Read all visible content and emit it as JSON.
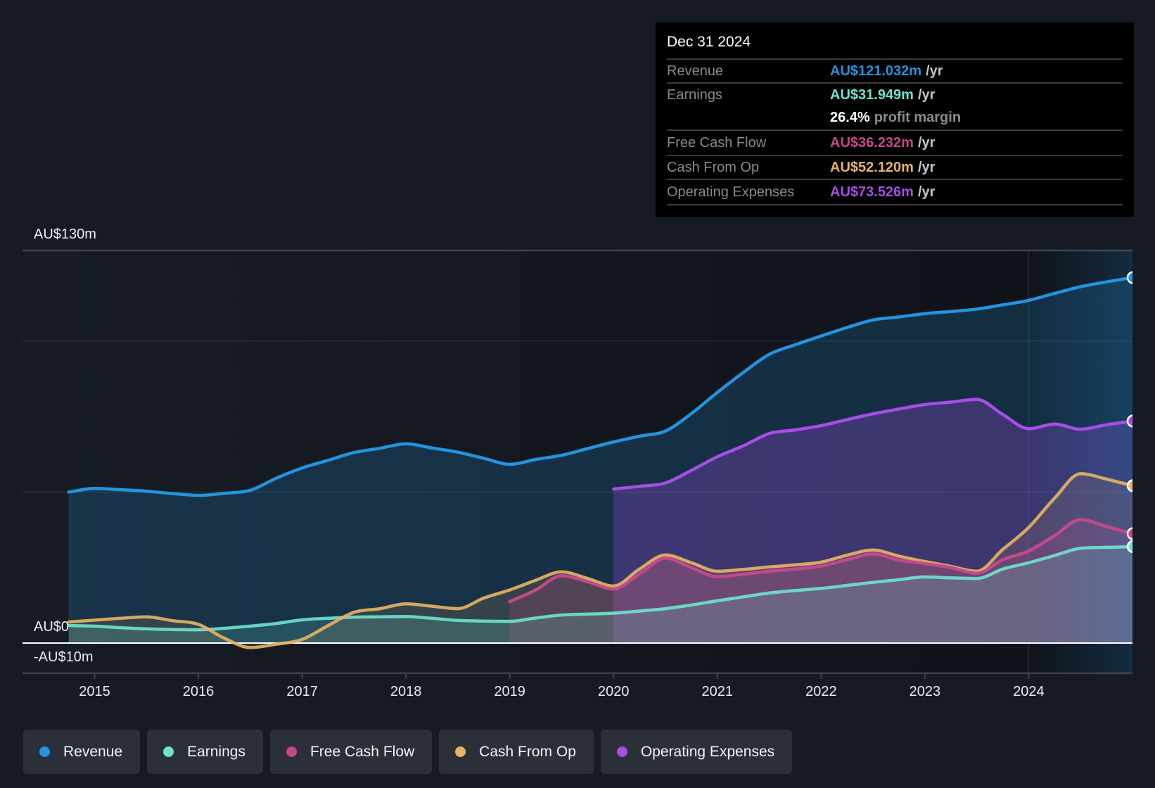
{
  "tooltip": {
    "date": "Dec 31 2024",
    "rows": [
      {
        "label": "Revenue",
        "value": "AU$121.032m",
        "unit": "/yr",
        "color": "#2394df"
      },
      {
        "label": "Earnings",
        "value": "AU$31.949m",
        "unit": "/yr",
        "color": "#6fe3cf"
      },
      {
        "label": "",
        "value": "26.4%",
        "unit": "profit margin",
        "color": "#ffffff"
      },
      {
        "label": "Free Cash Flow",
        "value": "AU$36.232m",
        "unit": "/yr",
        "color": "#c4498a"
      },
      {
        "label": "Cash From Op",
        "value": "AU$52.120m",
        "unit": "/yr",
        "color": "#e8b464"
      },
      {
        "label": "Operating Expenses",
        "value": "AU$73.526m",
        "unit": "/yr",
        "color": "#a64ee6"
      }
    ]
  },
  "legend": {
    "items": [
      {
        "label": "Revenue",
        "color": "#2394df"
      },
      {
        "label": "Earnings",
        "color": "#6fe3cf"
      },
      {
        "label": "Free Cash Flow",
        "color": "#c4498a"
      },
      {
        "label": "Cash From Op",
        "color": "#e8b464"
      },
      {
        "label": "Operating Expenses",
        "color": "#a64ee6"
      }
    ]
  },
  "chart_data": {
    "type": "area",
    "title": "",
    "xlabel": "",
    "ylabel": "",
    "x_unit": "year (decimal)",
    "xlim": [
      2014.75,
      2025.0
    ],
    "ylim": [
      -10,
      130
    ],
    "x_step": 0.25,
    "grid": true,
    "gridlines": [
      130,
      100,
      50
    ],
    "zero_line": 0,
    "highlight_range": [
      2024,
      2025
    ],
    "y_ticks": [
      {
        "value": 130,
        "label": "AU$130m"
      },
      {
        "value": 0,
        "label": "AU$0"
      },
      {
        "value": -10,
        "label": "-AU$10m"
      }
    ],
    "x_ticks": [
      {
        "value": 2015,
        "label": "2015"
      },
      {
        "value": 2016,
        "label": "2016"
      },
      {
        "value": 2017,
        "label": "2017"
      },
      {
        "value": 2018,
        "label": "2018"
      },
      {
        "value": 2019,
        "label": "2019"
      },
      {
        "value": 2020,
        "label": "2020"
      },
      {
        "value": 2021,
        "label": "2021"
      },
      {
        "value": 2022,
        "label": "2022"
      },
      {
        "value": 2023,
        "label": "2023"
      },
      {
        "value": 2024,
        "label": "2024"
      }
    ],
    "legend_position": "bottom",
    "series": [
      {
        "name": "Revenue",
        "key": "revenue",
        "color": "#2394df",
        "x_start": 2014.75,
        "values": [
          50.0,
          51.2,
          50.8,
          50.3,
          49.5,
          48.9,
          49.6,
          50.6,
          54.6,
          58.0,
          60.5,
          63.1,
          64.5,
          66.0,
          64.6,
          63.2,
          61.2,
          59.2,
          60.8,
          62.2,
          64.4,
          66.6,
          68.5,
          70.2,
          76.0,
          83.0,
          89.6,
          95.6,
          98.8,
          101.7,
          104.5,
          107.0,
          108.0,
          109.1,
          109.8,
          110.6,
          112.0,
          113.5,
          115.8,
          118.0,
          119.6,
          121.032
        ]
      },
      {
        "name": "Operating Expenses",
        "key": "operating-expenses",
        "color": "#a64ee6",
        "x_start": 2020.0,
        "values": [
          51.0,
          51.9,
          53.0,
          57.2,
          61.7,
          65.3,
          69.4,
          70.6,
          72.0,
          74.0,
          75.9,
          77.5,
          79.0,
          79.8,
          80.7,
          75.7,
          71.0,
          72.5,
          70.8,
          72.3,
          73.526
        ]
      },
      {
        "name": "Cash From Op",
        "key": "cash-from-op",
        "color": "#e8b464",
        "x_start": 2014.75,
        "values": [
          7.0,
          7.6,
          8.2,
          8.7,
          7.4,
          6.2,
          1.6,
          -1.5,
          -0.4,
          1.2,
          5.8,
          10.2,
          11.4,
          13.0,
          12.2,
          11.4,
          14.9,
          17.6,
          20.8,
          23.6,
          21.4,
          18.9,
          24.5,
          29.2,
          26.6,
          23.8,
          24.4,
          25.2,
          25.9,
          26.8,
          29.1,
          30.8,
          28.8,
          27.0,
          25.4,
          23.8,
          31.0,
          38.3,
          48.0,
          56.1,
          54.3,
          52.12
        ]
      },
      {
        "name": "Free Cash Flow",
        "key": "free-cash-flow",
        "color": "#c4498a",
        "x_start": 2019.0,
        "values": [
          13.7,
          17.6,
          22.3,
          20.3,
          17.9,
          22.9,
          28.1,
          25.0,
          22.0,
          22.8,
          23.8,
          24.5,
          25.5,
          27.6,
          29.5,
          27.5,
          26.3,
          25.0,
          23.1,
          27.6,
          30.5,
          35.6,
          40.9,
          38.6,
          36.232
        ]
      },
      {
        "name": "Earnings",
        "key": "earnings",
        "color": "#6fe3cf",
        "x_start": 2014.75,
        "values": [
          5.8,
          5.6,
          5.1,
          4.7,
          4.5,
          4.4,
          4.9,
          5.6,
          6.5,
          7.7,
          8.2,
          8.6,
          8.7,
          8.8,
          8.2,
          7.5,
          7.3,
          7.2,
          8.3,
          9.3,
          9.6,
          9.9,
          10.6,
          11.4,
          12.6,
          14.0,
          15.3,
          16.6,
          17.4,
          18.1,
          19.1,
          20.1,
          21.0,
          21.9,
          21.6,
          21.4,
          24.5,
          26.6,
          29.0,
          31.4,
          31.7,
          31.949
        ]
      }
    ]
  }
}
